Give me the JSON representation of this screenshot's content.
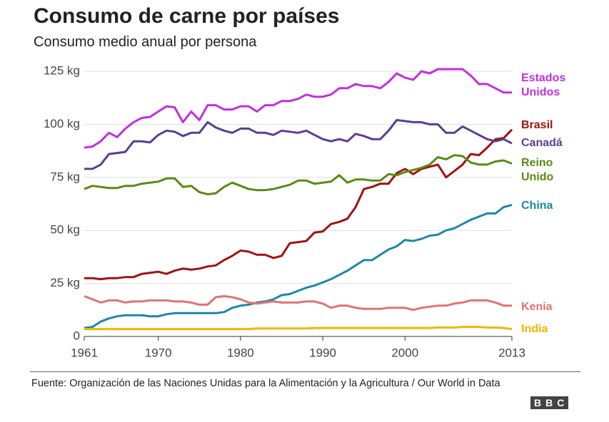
{
  "chart_data": {
    "type": "line",
    "title": "Consumo de carne por países",
    "subtitle": "Consumo medio anual por persona",
    "source": "Fuente: Organización de las Naciones Unidas para la Alimentación y la Agricultura / Our World in Data",
    "logo": "BBC",
    "x": [
      1961,
      1962,
      1963,
      1964,
      1965,
      1966,
      1967,
      1968,
      1969,
      1970,
      1971,
      1972,
      1973,
      1974,
      1975,
      1976,
      1977,
      1978,
      1979,
      1980,
      1981,
      1982,
      1983,
      1984,
      1985,
      1986,
      1987,
      1988,
      1989,
      1990,
      1991,
      1992,
      1993,
      1994,
      1995,
      1996,
      1997,
      1998,
      1999,
      2000,
      2001,
      2002,
      2003,
      2004,
      2005,
      2006,
      2007,
      2008,
      2009,
      2010,
      2011,
      2012,
      2013
    ],
    "xlim": [
      1961,
      2013
    ],
    "xticks": [
      1961,
      1970,
      1980,
      1990,
      2000,
      2013
    ],
    "ylim": [
      0,
      125
    ],
    "yticks": [
      0,
      {
        "value": 25,
        "label": "25 kg"
      },
      {
        "value": 50,
        "label": "50 kg"
      },
      {
        "value": 75,
        "label": "75 kg"
      },
      {
        "value": 100,
        "label": "100 kg"
      },
      {
        "value": 125,
        "label": "125 kg"
      }
    ],
    "grid": true,
    "series": [
      {
        "name": "Estados Unidos",
        "color": "#c22fe0",
        "values": [
          89,
          89.5,
          92,
          96,
          94,
          98,
          101,
          103,
          103.5,
          106,
          108.5,
          108,
          101,
          106,
          102,
          109,
          109,
          107,
          107,
          108.5,
          108.5,
          106,
          109,
          109,
          111,
          111,
          112,
          114,
          113,
          113,
          114,
          117,
          117,
          119,
          118,
          118,
          117,
          120,
          124,
          122,
          121,
          125,
          124,
          126,
          126,
          126,
          126,
          123,
          119,
          119,
          117,
          115,
          115
        ]
      },
      {
        "name": "Brasil",
        "color": "#a11212",
        "values": [
          27.5,
          27.5,
          27,
          27.5,
          27.5,
          28,
          28,
          29.5,
          30,
          30.5,
          29.5,
          31,
          32,
          31.5,
          32,
          33,
          33.5,
          36,
          38,
          40.5,
          40,
          38.5,
          38.5,
          37,
          38,
          44,
          44.5,
          45,
          49,
          49.5,
          53,
          54,
          55.5,
          61,
          69.5,
          70.5,
          72,
          72,
          77,
          79,
          76.5,
          79,
          80,
          81,
          75,
          78,
          81,
          86,
          85.5,
          89,
          93,
          93.5,
          97.5
        ]
      },
      {
        "name": "Canadá",
        "color": "#5a3e8f",
        "values": [
          79,
          79,
          81,
          86,
          86.5,
          87,
          92,
          92,
          91.5,
          95,
          97,
          96.5,
          94.5,
          96,
          96,
          101,
          98.5,
          97,
          96,
          98,
          98,
          96,
          96,
          95,
          97,
          96.5,
          96,
          97,
          95,
          93,
          92,
          93,
          92,
          95.5,
          94.5,
          93,
          93,
          97,
          102,
          101.5,
          101,
          101,
          100,
          100,
          96,
          96,
          99,
          97,
          95,
          93,
          92,
          93,
          91
        ]
      },
      {
        "name": "Reino Unido",
        "color": "#5b8a12",
        "values": [
          69.5,
          71,
          70.5,
          70,
          70,
          71,
          71,
          72,
          72.5,
          73,
          74.5,
          74.5,
          70.5,
          71,
          68,
          67,
          67.5,
          70.5,
          72.5,
          71,
          69.5,
          69,
          69,
          69.5,
          70.5,
          71.5,
          73.5,
          73.5,
          72,
          72.5,
          73,
          76,
          72.5,
          74,
          74,
          73.5,
          73.5,
          76.5,
          76,
          77.5,
          78.5,
          79.5,
          81,
          84.5,
          83.5,
          85.5,
          85,
          82,
          81,
          81,
          82.5,
          83,
          81.5
        ]
      },
      {
        "name": "China",
        "color": "#1d88a6",
        "values": [
          4,
          4.5,
          7,
          8.5,
          9.5,
          10,
          10,
          10,
          9.5,
          9.5,
          10.5,
          11,
          11,
          11,
          11,
          11,
          11,
          11.5,
          13.5,
          14.5,
          15,
          16,
          16.5,
          17.5,
          19.5,
          20,
          21.5,
          23,
          24,
          25.5,
          27,
          29,
          31,
          33.5,
          36,
          36,
          38.5,
          41,
          42.5,
          45.5,
          45,
          46,
          47.5,
          48,
          50,
          51,
          53,
          55,
          56.5,
          58,
          58,
          61,
          62
        ]
      },
      {
        "name": "Kenia",
        "color": "#e07373",
        "values": [
          19,
          17.5,
          16,
          17,
          17,
          16,
          16.5,
          16.5,
          17,
          17,
          17,
          16.5,
          16.5,
          16,
          15,
          15,
          18.5,
          19,
          18.5,
          17.5,
          16,
          15.5,
          16,
          16.5,
          16,
          16,
          16,
          16.5,
          16.5,
          15.5,
          13.5,
          14.5,
          14.5,
          13.5,
          13,
          13,
          13,
          13.5,
          13.5,
          13.5,
          12.5,
          13.5,
          14,
          14.5,
          14.5,
          15.5,
          16,
          17,
          17,
          17,
          16,
          14.5,
          14.5
        ]
      },
      {
        "name": "India",
        "color": "#f2b500",
        "values": [
          3.5,
          3.5,
          3.5,
          3.5,
          3.5,
          3.5,
          3.5,
          3.5,
          3.5,
          3.5,
          3.5,
          3.5,
          3.5,
          3.5,
          3.5,
          3.5,
          3.5,
          3.5,
          3.5,
          3.5,
          3.5,
          3.8,
          3.8,
          3.8,
          3.8,
          3.8,
          3.8,
          3.8,
          4,
          4,
          4,
          4,
          4,
          4,
          4,
          4,
          4,
          4,
          4,
          4,
          4,
          4,
          4,
          4.2,
          4.2,
          4.2,
          4.5,
          4.5,
          4.5,
          4.2,
          4.2,
          4,
          3.5
        ]
      }
    ]
  }
}
